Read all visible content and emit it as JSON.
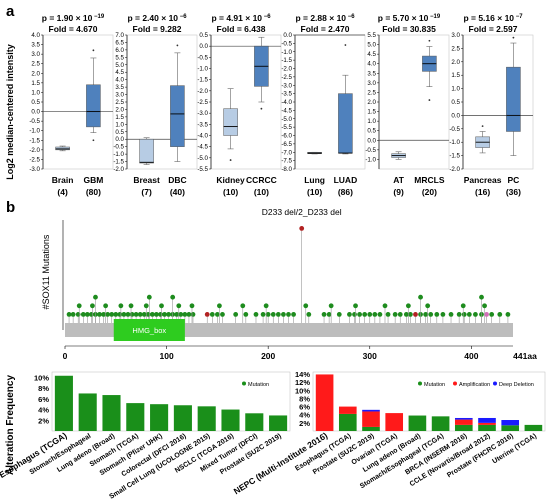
{
  "panel_labels": {
    "a": "a",
    "b": "b"
  },
  "colors": {
    "box_dark": "#4f81bd",
    "box_light": "#b7cce4",
    "lollipop_green": "#1e8c1e",
    "lollipop_red": "#b22222",
    "lollipop_pink": "#d16fb7",
    "domain_fill": "#2ecc1f",
    "protein_bar": "#bdbdbd",
    "mutation_green": "#1a8f1a",
    "amplification_red": "#ff1a1a",
    "deep_deletion_blue": "#1a1aff"
  },
  "chart_data": [
    {
      "type": "box",
      "id": "expression-boxplots",
      "ylabel": "Log2 median-centered intensity",
      "panels": [
        {
          "p_text": "p = 1.90 × 10",
          "p_exp": "−19",
          "fold_text": "Fold = 4.670",
          "ylim": [
            -3.0,
            4.0
          ],
          "ticks": [
            -3.0,
            -2.5,
            -2.0,
            -1.5,
            -1.0,
            -0.5,
            0.0,
            0.5,
            1.0,
            1.5,
            2.0,
            2.5,
            3.0,
            3.5,
            4.0
          ],
          "groups": [
            {
              "name": "Brain",
              "n": "(4)",
              "whisker": [
                -2.05,
                -1.8
              ],
              "box": [
                -2.0,
                -1.85
              ],
              "median": -1.95,
              "outliers": [],
              "light": true
            },
            {
              "name": "GBM",
              "n": "(80)",
              "whisker": [
                -1.1,
                2.8
              ],
              "box": [
                -0.8,
                1.4
              ],
              "median": 0.0,
              "outliers": [
                -1.5,
                3.2
              ],
              "light": false
            }
          ]
        },
        {
          "p_text": "p = 2.40 × 10",
          "p_exp": "−6",
          "fold_text": "Fold = 9.282",
          "ylim": [
            -2.0,
            7.0
          ],
          "ticks": [
            -2.0,
            -1.5,
            -1.0,
            -0.5,
            0.0,
            0.5,
            1.0,
            1.5,
            2.0,
            2.5,
            3.0,
            3.5,
            4.0,
            4.5,
            5.0,
            5.5,
            6.0,
            6.5,
            7.0
          ],
          "groups": [
            {
              "name": "Breast",
              "n": "(7)",
              "whisker": [
                -1.7,
                0.1
              ],
              "box": [
                -1.6,
                0.0
              ],
              "median": -1.55,
              "outliers": [],
              "light": true
            },
            {
              "name": "DBC",
              "n": "(40)",
              "whisker": [
                -1.5,
                5.8
              ],
              "box": [
                -0.5,
                3.6
              ],
              "median": 1.7,
              "outliers": [
                6.3
              ],
              "light": false
            }
          ]
        },
        {
          "p_text": "p = 4.91 × 10",
          "p_exp": "−6",
          "fold_text": "Fold = 6.438",
          "ylim": [
            -5.5,
            0.5
          ],
          "ticks": [
            -5.5,
            -5.0,
            -4.5,
            -4.0,
            -3.5,
            -3.0,
            -2.5,
            -2.0,
            -1.5,
            -1.0,
            -0.5,
            0.0,
            0.5
          ],
          "groups": [
            {
              "name": "Kidney",
              "n": "(10)",
              "whisker": [
                -4.6,
                -1.9
              ],
              "box": [
                -4.0,
                -2.8
              ],
              "median": -3.6,
              "outliers": [
                -5.1
              ],
              "light": true
            },
            {
              "name": "CCRCC",
              "n": "(10)",
              "whisker": [
                -2.5,
                0.4
              ],
              "box": [
                -1.8,
                0.0
              ],
              "median": -0.9,
              "outliers": [
                -2.8
              ],
              "light": false
            }
          ]
        },
        {
          "p_text": "p = 2.88 × 10",
          "p_exp": "−6",
          "fold_text": "Fold = 2.470",
          "ylim": [
            -8.0,
            0.0
          ],
          "ticks": [
            -8.0,
            -7.5,
            -7.0,
            -6.5,
            -6.0,
            -5.5,
            -5.0,
            -4.5,
            -4.0,
            -3.5,
            -3.0,
            -2.5,
            -2.0,
            -1.5,
            -1.0,
            -0.5,
            0.0
          ],
          "groups": [
            {
              "name": "Lung",
              "n": "(10)",
              "whisker": [
                -7.1,
                -7.0
              ],
              "box": [
                -7.08,
                -7.0
              ],
              "median": -7.05,
              "outliers": [],
              "light": true
            },
            {
              "name": "LUAD",
              "n": "(86)",
              "whisker": [
                -7.1,
                -2.4
              ],
              "box": [
                -7.05,
                -3.5
              ],
              "median": -7.05,
              "outliers": [
                -0.6
              ],
              "light": false
            }
          ]
        },
        {
          "p_text": "p = 5.70 × 10",
          "p_exp": "−19",
          "fold_text": "Fold = 30.835",
          "ylim": [
            -1.5,
            5.5
          ],
          "ticks": [
            -1.0,
            -0.5,
            0.0,
            0.5,
            1.0,
            1.5,
            2.0,
            2.5,
            3.0,
            3.5,
            4.0,
            4.5,
            5.0,
            5.5
          ],
          "groups": [
            {
              "name": "AT",
              "n": "(9)",
              "whisker": [
                -1.0,
                -0.6
              ],
              "box": [
                -0.9,
                -0.7
              ],
              "median": -0.8,
              "outliers": [],
              "light": true
            },
            {
              "name": "MRCLS",
              "n": "(20)",
              "whisker": [
                2.8,
                4.9
              ],
              "box": [
                3.6,
                4.4
              ],
              "median": 4.0,
              "outliers": [
                2.1,
                5.2
              ],
              "light": false
            }
          ]
        },
        {
          "p_text": "p = 5.16 × 10",
          "p_exp": "−7",
          "fold_text": "Fold = 2.597",
          "ylim": [
            -2.0,
            3.0
          ],
          "ticks": [
            -2.0,
            -1.5,
            -1.0,
            -0.5,
            0.0,
            0.5,
            1.0,
            1.5,
            2.0,
            2.5,
            3.0
          ],
          "groups": [
            {
              "name": "Pancreas",
              "n": "(16)",
              "whisker": [
                -1.4,
                -0.6
              ],
              "box": [
                -1.2,
                -0.8
              ],
              "median": -1.0,
              "outliers": [
                -0.4
              ],
              "light": true
            },
            {
              "name": "PC",
              "n": "(36)",
              "whisker": [
                -1.5,
                2.7
              ],
              "box": [
                -0.6,
                1.8
              ],
              "median": 0.0,
              "outliers": [
                2.9
              ],
              "light": false
            }
          ]
        }
      ]
    },
    {
      "type": "lollipop",
      "id": "sox11-mutations",
      "ylabel": "#SOX11 Mutations",
      "annotation": "D233 del/2_D233 del",
      "domain": {
        "label": "HMG_box",
        "start": 48,
        "end": 118
      },
      "protein_length": 441,
      "x_ticks": [
        0,
        100,
        200,
        300,
        400
      ],
      "end_label": "441aa",
      "mutations": [
        {
          "pos": 4,
          "h": 1,
          "c": "g"
        },
        {
          "pos": 8,
          "h": 1,
          "c": "g"
        },
        {
          "pos": 13,
          "h": 1,
          "c": "g"
        },
        {
          "pos": 18,
          "h": 1,
          "c": "g"
        },
        {
          "pos": 22,
          "h": 1,
          "c": "g"
        },
        {
          "pos": 26,
          "h": 1,
          "c": "g"
        },
        {
          "pos": 30,
          "h": 1,
          "c": "g"
        },
        {
          "pos": 34,
          "h": 1,
          "c": "g"
        },
        {
          "pos": 38,
          "h": 1,
          "c": "g"
        },
        {
          "pos": 42,
          "h": 1,
          "c": "g"
        },
        {
          "pos": 46,
          "h": 1,
          "c": "g"
        },
        {
          "pos": 50,
          "h": 1,
          "c": "g"
        },
        {
          "pos": 54,
          "h": 1,
          "c": "g"
        },
        {
          "pos": 58,
          "h": 1,
          "c": "g"
        },
        {
          "pos": 62,
          "h": 1,
          "c": "g"
        },
        {
          "pos": 66,
          "h": 1,
          "c": "g"
        },
        {
          "pos": 70,
          "h": 1,
          "c": "g"
        },
        {
          "pos": 74,
          "h": 1,
          "c": "g"
        },
        {
          "pos": 78,
          "h": 1,
          "c": "g"
        },
        {
          "pos": 82,
          "h": 1,
          "c": "g"
        },
        {
          "pos": 86,
          "h": 1,
          "c": "g"
        },
        {
          "pos": 90,
          "h": 1,
          "c": "g"
        },
        {
          "pos": 94,
          "h": 1,
          "c": "g"
        },
        {
          "pos": 98,
          "h": 1,
          "c": "g"
        },
        {
          "pos": 102,
          "h": 1,
          "c": "g"
        },
        {
          "pos": 106,
          "h": 1,
          "c": "g"
        },
        {
          "pos": 110,
          "h": 1,
          "c": "g"
        },
        {
          "pos": 114,
          "h": 1,
          "c": "g"
        },
        {
          "pos": 118,
          "h": 1,
          "c": "g"
        },
        {
          "pos": 122,
          "h": 1,
          "c": "g"
        },
        {
          "pos": 126,
          "h": 1,
          "c": "g"
        },
        {
          "pos": 140,
          "h": 1,
          "c": "r"
        },
        {
          "pos": 145,
          "h": 1,
          "c": "g"
        },
        {
          "pos": 150,
          "h": 1,
          "c": "g"
        },
        {
          "pos": 155,
          "h": 1,
          "c": "g"
        },
        {
          "pos": 168,
          "h": 1,
          "c": "g"
        },
        {
          "pos": 178,
          "h": 1,
          "c": "g"
        },
        {
          "pos": 188,
          "h": 1,
          "c": "g"
        },
        {
          "pos": 195,
          "h": 1,
          "c": "g"
        },
        {
          "pos": 200,
          "h": 1,
          "c": "g"
        },
        {
          "pos": 205,
          "h": 1,
          "c": "g"
        },
        {
          "pos": 210,
          "h": 1,
          "c": "g"
        },
        {
          "pos": 215,
          "h": 1,
          "c": "g"
        },
        {
          "pos": 220,
          "h": 1,
          "c": "g"
        },
        {
          "pos": 225,
          "h": 1,
          "c": "g"
        },
        {
          "pos": 240,
          "h": 1,
          "c": "g"
        },
        {
          "pos": 255,
          "h": 1,
          "c": "g"
        },
        {
          "pos": 260,
          "h": 1,
          "c": "g"
        },
        {
          "pos": 270,
          "h": 1,
          "c": "g"
        },
        {
          "pos": 280,
          "h": 1,
          "c": "g"
        },
        {
          "pos": 285,
          "h": 1,
          "c": "g"
        },
        {
          "pos": 290,
          "h": 1,
          "c": "g"
        },
        {
          "pos": 295,
          "h": 1,
          "c": "g"
        },
        {
          "pos": 300,
          "h": 1,
          "c": "g"
        },
        {
          "pos": 305,
          "h": 1,
          "c": "g"
        },
        {
          "pos": 310,
          "h": 1,
          "c": "g"
        },
        {
          "pos": 318,
          "h": 1,
          "c": "g"
        },
        {
          "pos": 325,
          "h": 1,
          "c": "g"
        },
        {
          "pos": 330,
          "h": 1,
          "c": "g"
        },
        {
          "pos": 336,
          "h": 1,
          "c": "g"
        },
        {
          "pos": 340,
          "h": 1,
          "c": "g"
        },
        {
          "pos": 345,
          "h": 1,
          "c": "r"
        },
        {
          "pos": 350,
          "h": 1,
          "c": "g"
        },
        {
          "pos": 355,
          "h": 1,
          "c": "g"
        },
        {
          "pos": 360,
          "h": 1,
          "c": "g"
        },
        {
          "pos": 366,
          "h": 1,
          "c": "g"
        },
        {
          "pos": 372,
          "h": 1,
          "c": "g"
        },
        {
          "pos": 380,
          "h": 1,
          "c": "g"
        },
        {
          "pos": 388,
          "h": 1,
          "c": "g"
        },
        {
          "pos": 393,
          "h": 1,
          "c": "g"
        },
        {
          "pos": 398,
          "h": 1,
          "c": "g"
        },
        {
          "pos": 404,
          "h": 1,
          "c": "g"
        },
        {
          "pos": 410,
          "h": 1,
          "c": "g"
        },
        {
          "pos": 415,
          "h": 1,
          "c": "p"
        },
        {
          "pos": 420,
          "h": 1,
          "c": "g"
        },
        {
          "pos": 428,
          "h": 1,
          "c": "g"
        },
        {
          "pos": 436,
          "h": 1,
          "c": "g"
        },
        {
          "pos": 14,
          "h": 2,
          "c": "g"
        },
        {
          "pos": 27,
          "h": 2,
          "c": "g"
        },
        {
          "pos": 40,
          "h": 2,
          "c": "g"
        },
        {
          "pos": 55,
          "h": 2,
          "c": "g"
        },
        {
          "pos": 65,
          "h": 2,
          "c": "g"
        },
        {
          "pos": 80,
          "h": 2,
          "c": "g"
        },
        {
          "pos": 95,
          "h": 2,
          "c": "g"
        },
        {
          "pos": 112,
          "h": 2,
          "c": "g"
        },
        {
          "pos": 125,
          "h": 2,
          "c": "g"
        },
        {
          "pos": 152,
          "h": 2,
          "c": "g"
        },
        {
          "pos": 175,
          "h": 2,
          "c": "g"
        },
        {
          "pos": 198,
          "h": 2,
          "c": "g"
        },
        {
          "pos": 237,
          "h": 2,
          "c": "g"
        },
        {
          "pos": 262,
          "h": 2,
          "c": "g"
        },
        {
          "pos": 286,
          "h": 2,
          "c": "g"
        },
        {
          "pos": 315,
          "h": 2,
          "c": "g"
        },
        {
          "pos": 338,
          "h": 2,
          "c": "g"
        },
        {
          "pos": 357,
          "h": 2,
          "c": "g"
        },
        {
          "pos": 392,
          "h": 2,
          "c": "g"
        },
        {
          "pos": 413,
          "h": 2,
          "c": "g"
        },
        {
          "pos": 30,
          "h": 3,
          "c": "g"
        },
        {
          "pos": 83,
          "h": 3,
          "c": "g"
        },
        {
          "pos": 106,
          "h": 3,
          "c": "g"
        },
        {
          "pos": 350,
          "h": 3,
          "c": "g"
        },
        {
          "pos": 410,
          "h": 3,
          "c": "g"
        },
        {
          "pos": 233,
          "h": 11,
          "c": "r"
        }
      ]
    },
    {
      "type": "bar",
      "id": "alteration-frequency-left",
      "ylabel": "Alteration Frequency",
      "legend": [
        "Mutation"
      ],
      "yticks": [
        "10%",
        "8%",
        "6%",
        "4%",
        "2%"
      ],
      "ylim": [
        0,
        11
      ],
      "categories": [
        "Esophagus (TCGA)",
        "Stomach/Esophageal",
        "Lung adeno (Broad)",
        "Stomach (TCGA)",
        "Stomach (Pfizer UHK)",
        "Colorectal (DFCI 2016)",
        "Small Cell Lung (UCOLOGNE 2015)",
        "NSCLC (TCGA 2016)",
        "Mixed Tumor (DFCI)",
        "Prostate (SU2C 2019)"
      ],
      "series": [
        {
          "name": "Mutation",
          "values": [
            10.3,
            7.0,
            6.7,
            5.2,
            5.0,
            4.8,
            4.6,
            4.0,
            3.3,
            2.9
          ]
        }
      ]
    },
    {
      "type": "bar",
      "id": "alteration-frequency-right",
      "legend": [
        "Mutation",
        "Amplification",
        "Deep Deletion"
      ],
      "yticks": [
        "14%",
        "12%",
        "10%",
        "8%",
        "6%",
        "4%",
        "2%"
      ],
      "ylim": [
        0,
        14.5
      ],
      "categories": [
        "NEPC (Multi-Institute 2016)",
        "Esophagus (TCGA)",
        "Prostate (SU2C 2019)",
        "Ovarian (TCGA)",
        "Lung adeno (Broad)",
        "Stomach/Esophageal (TCGA)",
        "BRCA (INSERM 2016)",
        "CCLE (Novartis/Broad 2012)",
        "Prostate (FHCRC 2016)",
        "Uterine (TCGA)"
      ],
      "series": [
        {
          "name": "Mutation",
          "values": [
            0.0,
            4.2,
            1.0,
            0.0,
            3.8,
            3.6,
            1.5,
            1.5,
            1.4,
            1.5
          ]
        },
        {
          "name": "Amplification",
          "values": [
            13.9,
            1.8,
            3.8,
            4.4,
            0.0,
            0.0,
            1.3,
            0.5,
            0.0,
            0.0
          ]
        },
        {
          "name": "Deep Deletion",
          "values": [
            0.0,
            0.0,
            0.4,
            0.0,
            0.0,
            0.0,
            0.4,
            1.2,
            1.3,
            0.0
          ]
        }
      ]
    }
  ]
}
